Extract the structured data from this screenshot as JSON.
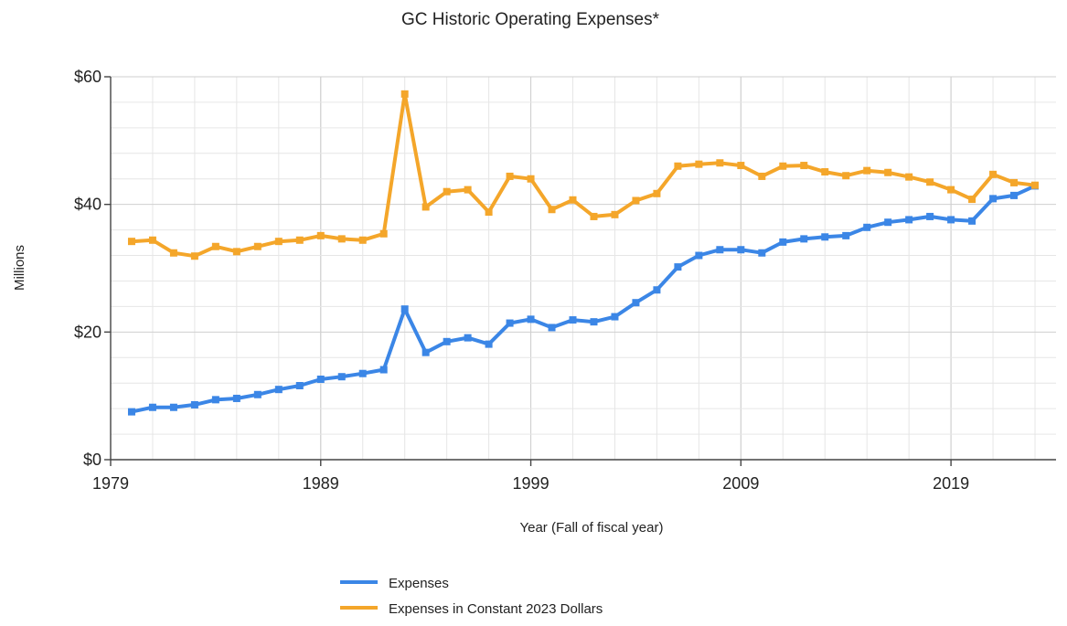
{
  "chart_data": {
    "type": "line",
    "title": "GC Historic Operating Expenses*",
    "xlabel": "Year (Fall of fiscal year)",
    "ylabel": "Millions",
    "xlim": [
      1979,
      2024
    ],
    "ylim": [
      0,
      60
    ],
    "x_ticks": [
      1979,
      1989,
      1999,
      2009,
      2019
    ],
    "y_ticks": [
      0,
      20,
      40,
      60
    ],
    "y_tick_labels": [
      "$0",
      "$20",
      "$40",
      "$60"
    ],
    "grid": true,
    "legend_position": "bottom",
    "x": [
      1980,
      1981,
      1982,
      1983,
      1984,
      1985,
      1986,
      1987,
      1988,
      1989,
      1990,
      1991,
      1992,
      1993,
      1994,
      1995,
      1996,
      1997,
      1998,
      1999,
      2000,
      2001,
      2002,
      2003,
      2004,
      2005,
      2006,
      2007,
      2008,
      2009,
      2010,
      2011,
      2012,
      2013,
      2014,
      2015,
      2016,
      2017,
      2018,
      2019,
      2020,
      2021,
      2022,
      2023
    ],
    "series": [
      {
        "name": "Expenses",
        "color": "#3b86e6",
        "values": [
          7.5,
          8.2,
          8.2,
          8.6,
          9.4,
          9.6,
          10.2,
          11.0,
          11.6,
          12.6,
          13.0,
          13.5,
          14.1,
          23.6,
          16.8,
          18.5,
          19.1,
          18.1,
          21.4,
          22.0,
          20.7,
          21.9,
          21.6,
          22.4,
          24.6,
          26.6,
          30.2,
          32.0,
          32.9,
          32.9,
          32.4,
          34.1,
          34.6,
          34.9,
          35.1,
          36.4,
          37.2,
          37.6,
          38.1,
          37.6,
          37.4,
          40.9,
          41.4,
          42.9
        ]
      },
      {
        "name": "Expenses in Constant 2023 Dollars",
        "color": "#f4a62a",
        "values": [
          34.2,
          34.4,
          32.4,
          31.9,
          33.4,
          32.6,
          33.4,
          34.2,
          34.4,
          35.1,
          34.6,
          34.4,
          35.4,
          57.3,
          39.6,
          42.0,
          42.3,
          38.8,
          44.4,
          44.0,
          39.2,
          40.7,
          38.1,
          38.4,
          40.6,
          41.7,
          46.0,
          46.3,
          46.5,
          46.1,
          44.4,
          46.0,
          46.1,
          45.1,
          44.5,
          45.3,
          45.0,
          44.3,
          43.5,
          42.3,
          40.8,
          44.7,
          43.4,
          43.0
        ]
      }
    ]
  }
}
